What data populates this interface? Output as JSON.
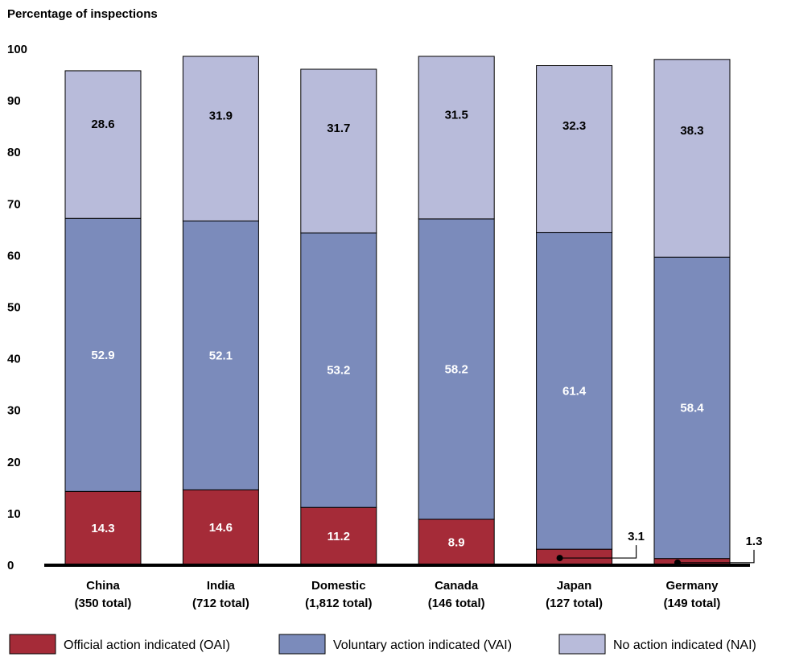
{
  "chart_data": {
    "type": "bar",
    "stacked": true,
    "ylabel": "Percentage of inspections",
    "ylim": [
      0,
      100
    ],
    "yticks": [
      0,
      10,
      20,
      30,
      40,
      50,
      60,
      70,
      80,
      90,
      100
    ],
    "categories": [
      "China",
      "India",
      "Domestic",
      "Canada",
      "Japan",
      "Germany"
    ],
    "category_totals": [
      "(350 total)",
      "(712 total)",
      "(1,812 total)",
      "(146 total)",
      "(127 total)",
      "(149 total)"
    ],
    "series": [
      {
        "name": "Official action indicated (OAI)",
        "color": "#a52b38",
        "label_color": "#ffffff",
        "values": [
          14.3,
          14.6,
          11.2,
          8.9,
          3.1,
          1.3
        ]
      },
      {
        "name": "Voluntary action indicated (VAI)",
        "color": "#7b8bbb",
        "label_color": "#ffffff",
        "values": [
          52.9,
          52.1,
          53.2,
          58.2,
          61.4,
          58.4
        ]
      },
      {
        "name": "No action indicated (NAI)",
        "color": "#b8bbda",
        "label_color": "#000000",
        "values": [
          28.6,
          31.9,
          31.7,
          31.5,
          32.3,
          38.3
        ]
      }
    ],
    "grid": false,
    "legend_position": "bottom"
  }
}
